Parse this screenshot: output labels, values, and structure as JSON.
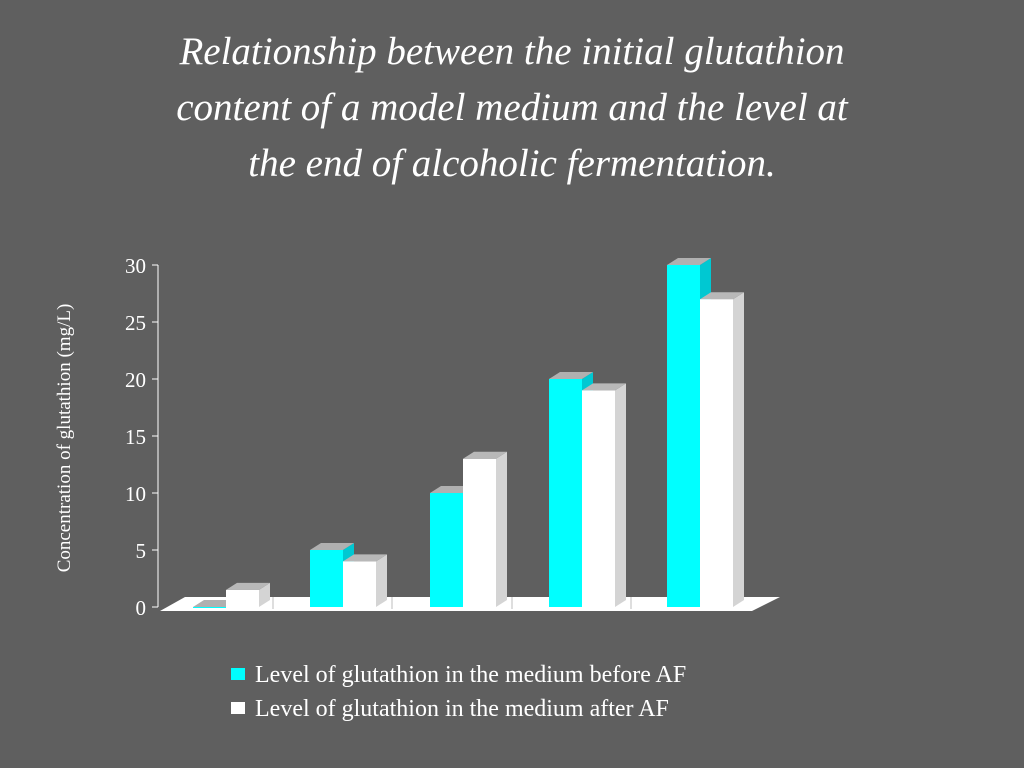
{
  "title_lines": [
    "Relationship between the initial glutathion",
    "content of a model medium and the level at",
    "the end of alcoholic fermentation."
  ],
  "colors": {
    "background": "#5f5f5f",
    "series_before": "#00ffff",
    "series_after": "#ffffff"
  },
  "chart_data": {
    "type": "bar",
    "ylabel": "Concentration of glutathion (mg/L)",
    "xlabel": "",
    "ylim": [
      0,
      30
    ],
    "yticks": [
      "0",
      "5",
      "10",
      "15",
      "20",
      "25",
      "30"
    ],
    "categories": [
      "",
      "",
      "",
      "",
      ""
    ],
    "series": [
      {
        "name": "Level of glutathion in the medium before AF",
        "values": [
          0,
          5,
          10,
          20,
          30
        ]
      },
      {
        "name": "Level of glutathion in the medium after AF",
        "values": [
          1.5,
          4,
          13,
          19,
          27
        ]
      }
    ],
    "grid": false,
    "legend_position": "bottom"
  }
}
